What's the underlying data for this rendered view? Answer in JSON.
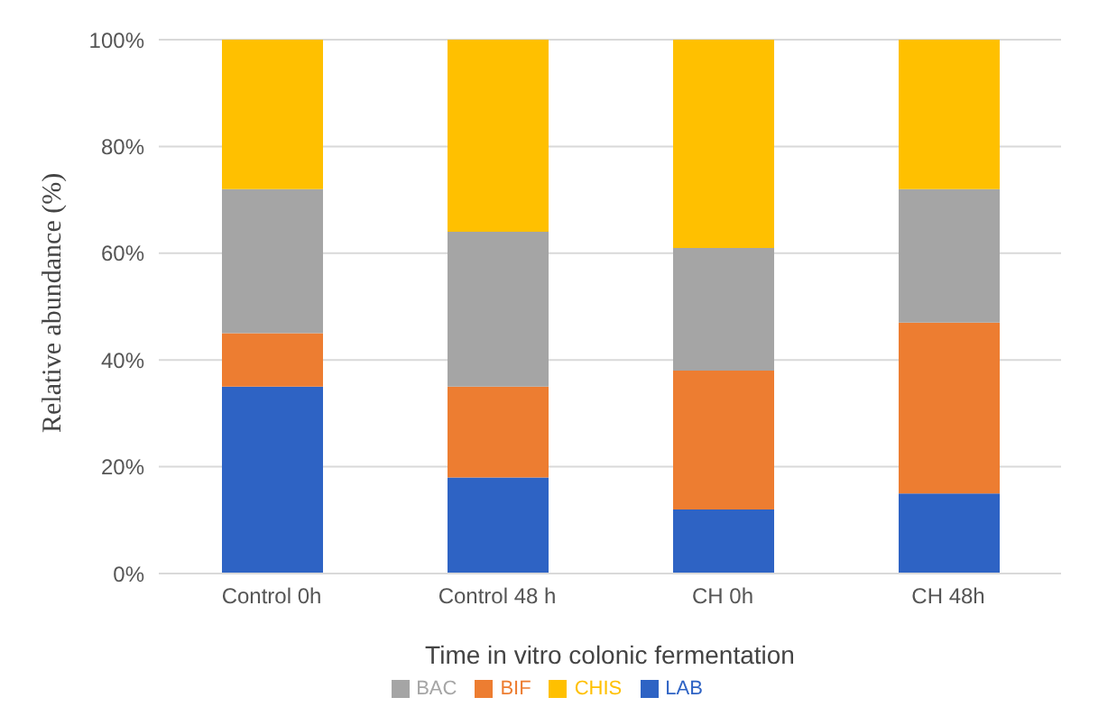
{
  "chart_data": {
    "type": "bar",
    "stacked": true,
    "xlabel": "Time in vitro colonic fermentation",
    "ylabel": "Relative abundance (%)",
    "categories": [
      "Control 0h",
      "Control 48 h",
      "CH 0h",
      "CH 48h"
    ],
    "series": [
      {
        "name": "LAB",
        "color": "#2e63c4",
        "values": [
          35,
          18,
          12,
          15
        ]
      },
      {
        "name": "BIF",
        "color": "#ed7d31",
        "values": [
          10,
          17,
          26,
          32
        ]
      },
      {
        "name": "BAC",
        "color": "#a5a5a5",
        "values": [
          27,
          29,
          23,
          25
        ]
      },
      {
        "name": "CHIS",
        "color": "#ffc000",
        "values": [
          28,
          36,
          39,
          28
        ]
      }
    ],
    "ylim": [
      0,
      100
    ],
    "yticks": [
      {
        "value": 0,
        "label": "0%"
      },
      {
        "value": 20,
        "label": "20%"
      },
      {
        "value": 40,
        "label": "40%"
      },
      {
        "value": 60,
        "label": "60%"
      },
      {
        "value": 80,
        "label": "80%"
      },
      {
        "value": 100,
        "label": "100%"
      }
    ],
    "grid": "y",
    "legend": "bottom"
  }
}
